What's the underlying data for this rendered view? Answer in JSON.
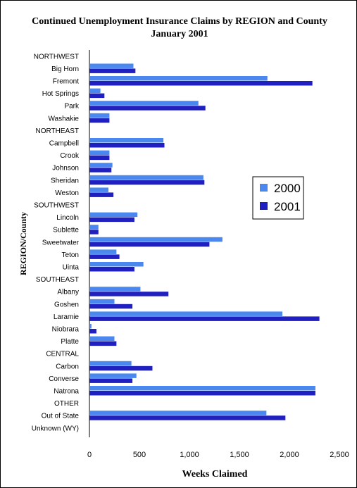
{
  "chart_data": {
    "type": "bar",
    "orientation": "horizontal",
    "title": "Continued Unemployment Insurance Claims by REGION and County",
    "subtitle": "January 2001",
    "xlabel": "Weeks Claimed",
    "ylabel": "REGION/County",
    "xlim": [
      0,
      2500
    ],
    "xticks": [
      "0",
      "500",
      "1,000",
      "1,500",
      "2,000",
      "2,500"
    ],
    "grid": false,
    "legend_position": "right",
    "categories": [
      "NORTHWEST",
      "Big Horn",
      "Fremont",
      "Hot Springs",
      "Park",
      "Washakie",
      "NORTHEAST",
      "Campbell",
      "Crook",
      "Johnson",
      "Sheridan",
      "Weston",
      "SOUTHWEST",
      "Lincoln",
      "Sublette",
      "Sweetwater",
      "Teton",
      "Uinta",
      "SOUTHEAST",
      "Albany",
      "Goshen",
      "Laramie",
      "Niobrara",
      "Platte",
      "CENTRAL",
      "Carbon",
      "Converse",
      "Natrona",
      "OTHER",
      "Out of State",
      "Unknown (WY)"
    ],
    "series": [
      {
        "name": "2000",
        "color": "#4a88f0",
        "values": [
          null,
          440,
          1780,
          110,
          1090,
          200,
          null,
          740,
          200,
          230,
          1140,
          190,
          null,
          480,
          90,
          1330,
          270,
          540,
          null,
          510,
          250,
          1930,
          20,
          250,
          null,
          420,
          470,
          2260,
          null,
          1770,
          0
        ]
      },
      {
        "name": "2001",
        "color": "#2020c0",
        "values": [
          null,
          460,
          2230,
          150,
          1160,
          200,
          null,
          750,
          200,
          220,
          1150,
          240,
          null,
          450,
          90,
          1200,
          300,
          450,
          null,
          790,
          430,
          2300,
          70,
          270,
          null,
          630,
          430,
          2260,
          null,
          1960,
          0
        ]
      }
    ]
  }
}
